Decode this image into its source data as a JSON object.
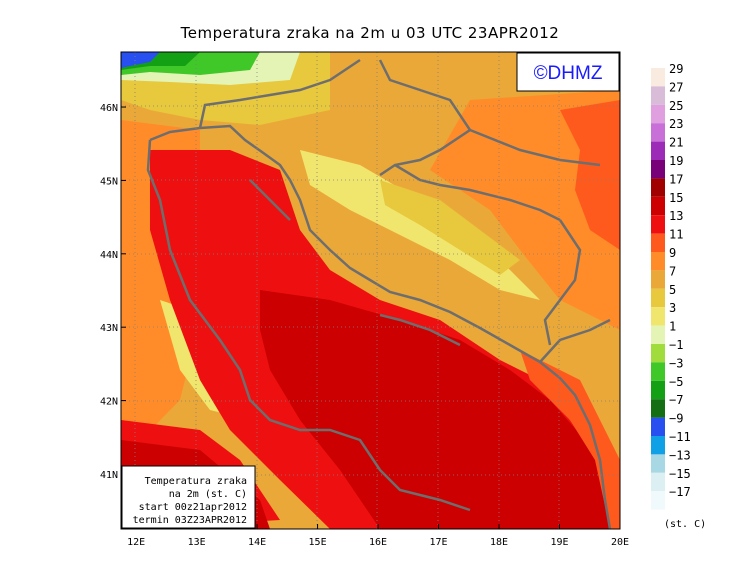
{
  "title": "Temperatura zraka na 2m u 03 UTC 23APR2012",
  "watermark": "©DHMZ",
  "info_box": {
    "line1": "Temperatura zraka",
    "line2": "na 2m (st. C)",
    "line3": "start 00z21apr2012",
    "line4": "termin 03Z23APR2012"
  },
  "axes": {
    "x_ticks": [
      "12E",
      "13E",
      "14E",
      "15E",
      "16E",
      "17E",
      "18E",
      "19E",
      "20E"
    ],
    "y_ticks": [
      "46N",
      "45N",
      "44N",
      "43N",
      "42N",
      "41N"
    ],
    "lon_range": [
      11.75,
      20.0
    ],
    "lat_range": [
      40.25,
      46.75
    ]
  },
  "legend": {
    "unit": "(st. C)",
    "levels": [
      {
        "label": "29",
        "color": "#f9ebe0"
      },
      {
        "label": "27",
        "color": "#d8bcd8"
      },
      {
        "label": "25",
        "color": "#e0a0e0"
      },
      {
        "label": "23",
        "color": "#c870d8"
      },
      {
        "label": "21",
        "color": "#9c2cb8"
      },
      {
        "label": "19",
        "color": "#780078"
      },
      {
        "label": "17",
        "color": "#a00000"
      },
      {
        "label": "15",
        "color": "#cc0000"
      },
      {
        "label": "13",
        "color": "#ee1010"
      },
      {
        "label": "11",
        "color": "#ff5a1e"
      },
      {
        "label": "9",
        "color": "#ff8c28"
      },
      {
        "label": "7",
        "color": "#eaa838"
      },
      {
        "label": "5",
        "color": "#e8c83c"
      },
      {
        "label": "3",
        "color": "#f0e66e"
      },
      {
        "label": "1",
        "color": "#e4f4b4"
      },
      {
        "label": "−1",
        "color": "#a0dc3c"
      },
      {
        "label": "−3",
        "color": "#40c828"
      },
      {
        "label": "−5",
        "color": "#14a014"
      },
      {
        "label": "−7",
        "color": "#146e14"
      },
      {
        "label": "−9",
        "color": "#2850f0"
      },
      {
        "label": "−11",
        "color": "#10a0e6"
      },
      {
        "label": "−13",
        "color": "#a8d8e4"
      },
      {
        "label": "−15",
        "color": "#dcf0f4"
      },
      {
        "label": "−17",
        "color": "#f0fafc"
      }
    ]
  }
}
